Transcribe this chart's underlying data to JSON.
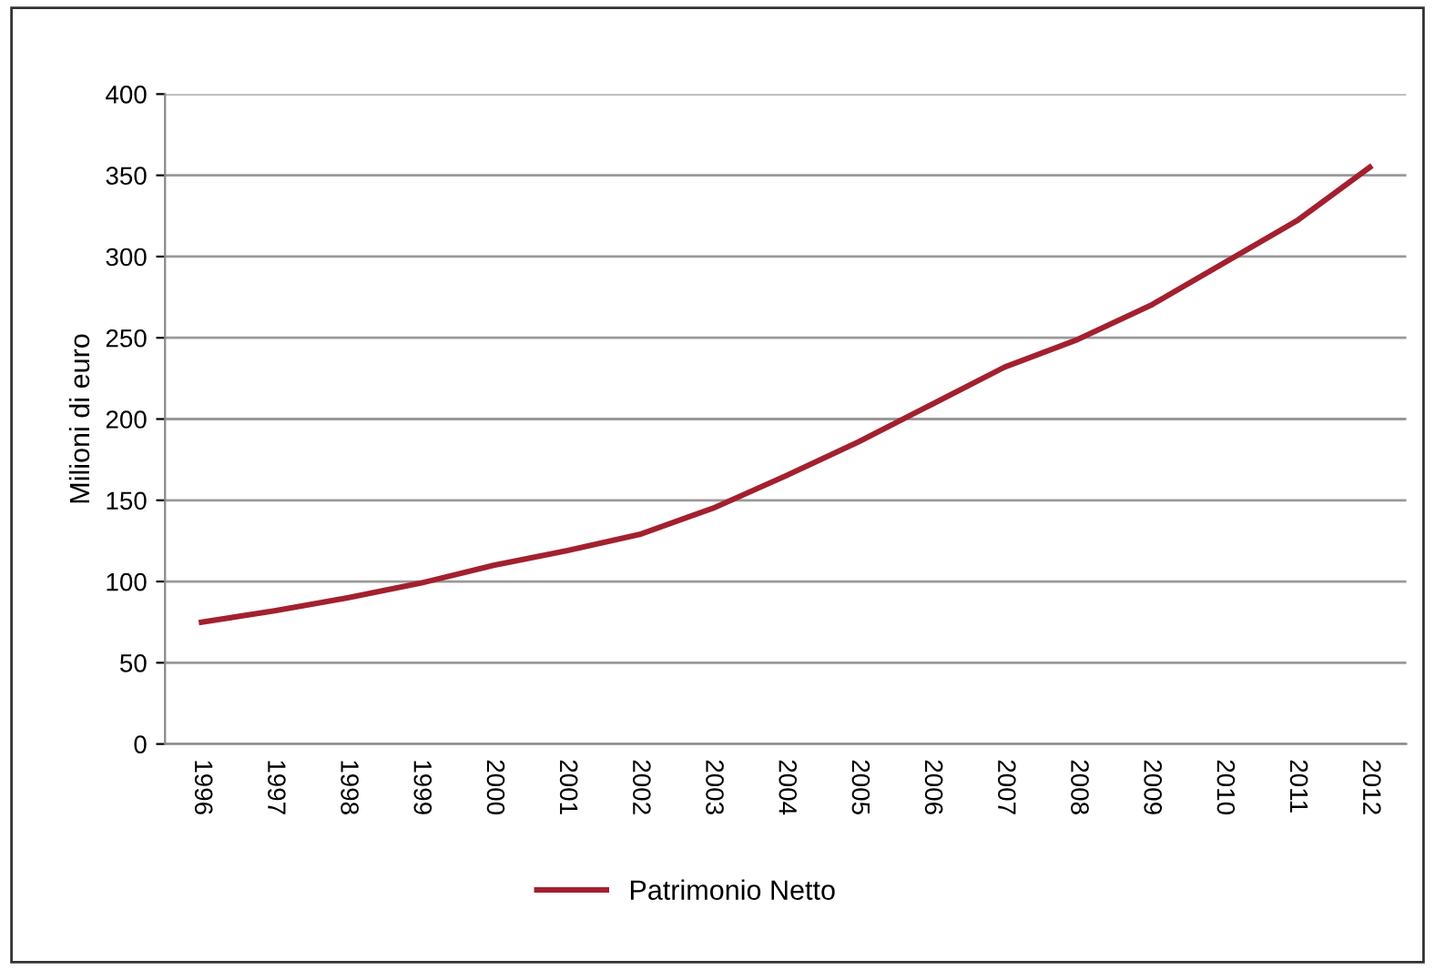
{
  "chart_data": {
    "type": "line",
    "ylabel": "Milioni di euro",
    "categories": [
      "1996",
      "1997",
      "1998",
      "1999",
      "2000",
      "2001",
      "2002",
      "2003",
      "2004",
      "2005",
      "2006",
      "2007",
      "2008",
      "2009",
      "2010",
      "2011",
      "2012"
    ],
    "series": [
      {
        "name": "Patrimonio Netto",
        "color": "#a3202f",
        "values": [
          75,
          82,
          90,
          99,
          110,
          119,
          129,
          145,
          165,
          186,
          209,
          232,
          249,
          270,
          296,
          322,
          355
        ]
      }
    ],
    "ylim": [
      0,
      400
    ],
    "yticks": [
      0,
      50,
      100,
      150,
      200,
      250,
      300,
      350,
      400
    ],
    "grid": "y",
    "legend": "bottom",
    "marker": "none",
    "line_style": "solid"
  }
}
